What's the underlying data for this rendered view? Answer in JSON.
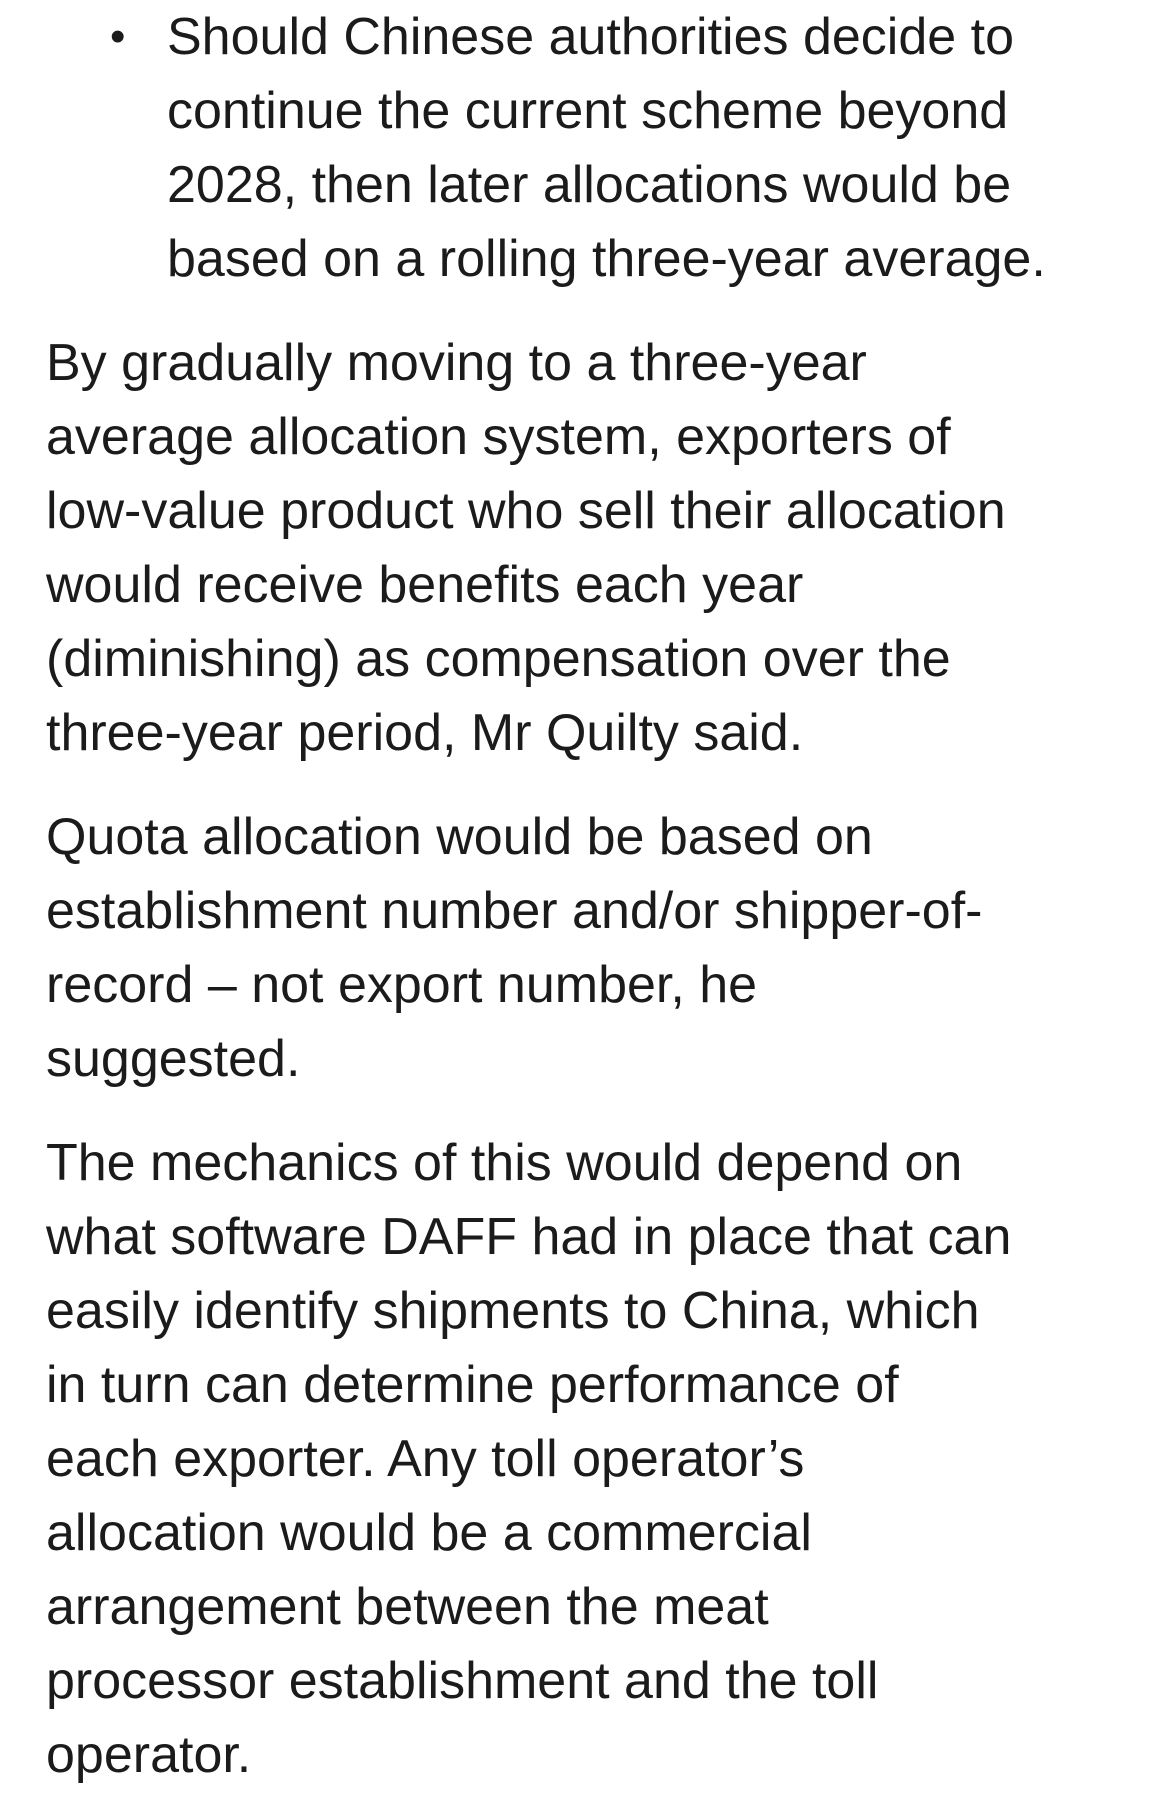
{
  "page": {
    "background_color": "#ffffff",
    "text_color": "#1b1b1b"
  },
  "article": {
    "bullet_glyph": "•",
    "bullet_items": [
      {
        "lines": [
          "Should Chinese authorities decide to",
          "continue the current scheme beyond",
          "2028, then later allocations would be",
          "based on a rolling three-year average."
        ]
      }
    ],
    "paragraphs": [
      {
        "lines": [
          "By gradually moving to a three-year",
          "average allocation system, exporters of",
          "low-value product who sell their allocation",
          "would receive benefits each year",
          "(diminishing) as compensation over the",
          "three-year period, Mr Quilty said."
        ]
      },
      {
        "lines": [
          "Quota allocation would be based on",
          "establishment number and/or shipper-of-",
          "record – not export number, he",
          "suggested."
        ]
      },
      {
        "lines": [
          "The mechanics of this would depend on",
          "what software DAFF had in place that can",
          "easily identify shipments to China, which",
          "in turn can determine performance of",
          "each exporter. Any toll operator’s",
          "allocation would be a commercial",
          "arrangement between the meat",
          "processor establishment and the toll",
          "operator."
        ]
      }
    ]
  }
}
